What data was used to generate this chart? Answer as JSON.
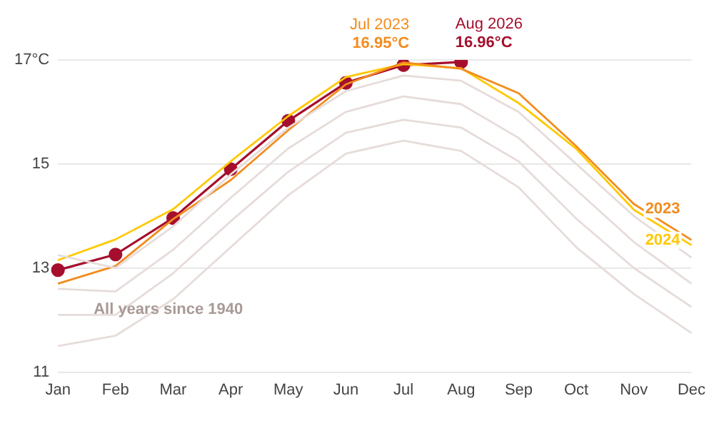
{
  "chart_data": {
    "type": "line",
    "categories": [
      "Jan",
      "Feb",
      "Mar",
      "Apr",
      "May",
      "Jun",
      "Jul",
      "Aug",
      "Sep",
      "Oct",
      "Nov",
      "Dec"
    ],
    "series": [
      {
        "color": "#e6dcd9",
        "values": [
          11.5,
          11.7,
          12.4,
          13.4,
          14.4,
          15.2,
          15.45,
          15.25,
          14.55,
          13.4,
          12.5,
          11.75
        ]
      },
      {
        "color": "#e6dcd9",
        "values": [
          12.1,
          12.1,
          12.9,
          13.9,
          14.85,
          15.6,
          15.85,
          15.7,
          15.05,
          13.95,
          13.0,
          12.25
        ]
      },
      {
        "color": "#e6dcd9",
        "values": [
          12.6,
          12.55,
          13.35,
          14.35,
          15.3,
          16.0,
          16.3,
          16.15,
          15.5,
          14.5,
          13.5,
          12.7
        ]
      },
      {
        "color": "#e6dcd9",
        "values": [
          13.25,
          13.0,
          13.8,
          14.8,
          15.7,
          16.4,
          16.7,
          16.6,
          16.0,
          15.0,
          14.0,
          13.2
        ]
      },
      {
        "name": "2023",
        "color": "#f28c1e",
        "values": [
          12.7,
          13.04,
          13.94,
          14.69,
          15.65,
          16.53,
          16.95,
          16.83,
          16.36,
          15.34,
          14.23,
          13.54
        ]
      },
      {
        "name": "2024",
        "color": "#ffc800",
        "values": [
          13.15,
          13.55,
          14.13,
          15.05,
          15.92,
          16.67,
          16.92,
          16.84,
          16.17,
          15.29,
          14.12,
          13.44
        ]
      },
      {
        "color": "#a50f2d",
        "marker": "circle",
        "values": [
          12.96,
          13.26,
          13.96,
          14.9,
          15.83,
          16.56,
          16.9,
          16.96,
          null,
          null,
          null,
          null
        ]
      }
    ],
    "ylim": [
      11,
      17
    ],
    "yticks": [
      11,
      13,
      15,
      {
        "value": 17,
        "label": "17°C"
      }
    ],
    "grid": "y",
    "legend": false,
    "marker": "none",
    "line_style": "solid",
    "annotations": [
      {
        "text": "Jul 2023\n16.95°C",
        "x": "Jul",
        "y": 16.95
      },
      {
        "text": "Aug 2026\n16.96°C",
        "x": "Aug",
        "y": 16.96
      },
      "All years since 1940"
    ]
  }
}
